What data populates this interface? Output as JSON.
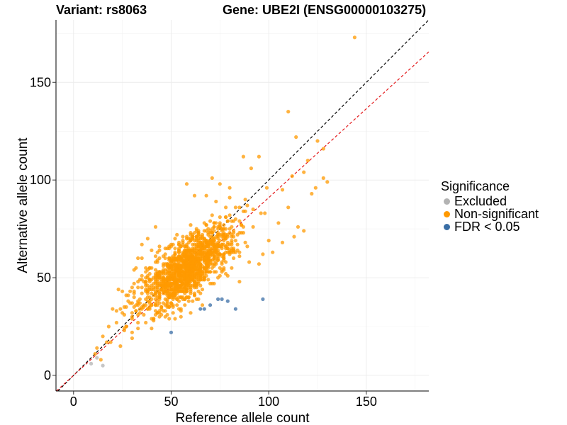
{
  "header": {
    "variant": "Variant: rs8063",
    "gene": "Gene: UBE2I (ENSG00000103275)"
  },
  "legend": {
    "title": "Significance",
    "items": [
      {
        "label": "Excluded",
        "color": "#b3b3b3"
      },
      {
        "label": "Non-significant",
        "color": "#ff9900"
      },
      {
        "label": "FDR < 0.05",
        "color": "#3a6ea5"
      }
    ]
  },
  "chart_data": {
    "type": "scatter",
    "title": "Variant: rs8063    Gene: UBE2I (ENSG00000103275)",
    "xlabel": "Reference allele count",
    "ylabel": "Alternative allele count",
    "xlim": [
      -9,
      182
    ],
    "ylim": [
      -8,
      182
    ],
    "xticks": [
      0,
      50,
      100,
      150
    ],
    "yticks": [
      0,
      50,
      100,
      150
    ],
    "grid": true,
    "reference_lines": [
      {
        "name": "identity",
        "slope": 1.0,
        "intercept": 0,
        "color": "#000000",
        "style": "dashed"
      },
      {
        "name": "fitted",
        "slope": 0.91,
        "intercept": 0,
        "color": "#e41a1c",
        "style": "dashed"
      }
    ],
    "series": [
      {
        "name": "Excluded",
        "color": "#b3b3b3",
        "points": [
          [
            9,
            6
          ],
          [
            15,
            5
          ],
          [
            12,
            9
          ]
        ]
      },
      {
        "name": "FDR < 0.05",
        "color": "#3a6ea5",
        "points": [
          [
            50,
            22
          ],
          [
            65,
            34
          ],
          [
            67,
            34
          ],
          [
            70,
            36
          ],
          [
            74,
            39
          ],
          [
            76,
            39
          ],
          [
            79,
            38
          ],
          [
            83,
            34
          ],
          [
            97,
            39
          ]
        ]
      },
      {
        "name": "Non-significant",
        "color": "#ff9900",
        "n_points": 1500,
        "bulk_center": [
          58,
          55
        ],
        "sd_along_diagonal": 15,
        "sd_across_diagonal": 6,
        "points": [
          [
            144,
            173
          ],
          [
            110,
            135
          ],
          [
            114,
            122
          ],
          [
            125,
            120
          ],
          [
            128,
            116
          ],
          [
            120,
            110
          ],
          [
            118,
            104
          ],
          [
            112,
            102
          ],
          [
            128,
            101
          ],
          [
            130,
            99
          ],
          [
            124,
            96
          ],
          [
            122,
            93
          ],
          [
            95,
            112
          ],
          [
            87,
            112
          ],
          [
            91,
            106
          ],
          [
            99,
            96
          ],
          [
            107,
            95
          ],
          [
            110,
            86
          ],
          [
            115,
            76
          ],
          [
            118,
            74
          ],
          [
            113,
            71
          ],
          [
            107,
            68
          ],
          [
            100,
            69
          ],
          [
            105,
            78
          ],
          [
            98,
            83
          ],
          [
            88,
            90
          ],
          [
            92,
            85
          ],
          [
            80,
            96
          ],
          [
            75,
            98
          ],
          [
            71,
            101
          ],
          [
            68,
            92
          ],
          [
            58,
            98
          ],
          [
            62,
            92
          ],
          [
            42,
            76
          ],
          [
            38,
            70
          ],
          [
            35,
            60
          ],
          [
            30,
            45
          ],
          [
            28,
            41
          ],
          [
            25,
            43
          ],
          [
            22,
            33
          ],
          [
            18,
            25
          ],
          [
            15,
            20
          ],
          [
            12,
            14
          ],
          [
            11,
            11
          ],
          [
            14,
            8
          ],
          [
            19,
            17
          ],
          [
            22,
            27
          ],
          [
            26,
            24
          ],
          [
            33,
            27
          ],
          [
            40,
            24
          ],
          [
            44,
            30
          ],
          [
            55,
            30
          ],
          [
            60,
            32
          ],
          [
            78,
            52
          ],
          [
            85,
            48
          ],
          [
            95,
            57
          ],
          [
            102,
            63
          ],
          [
            97,
            62
          ],
          [
            90,
            58
          ]
        ]
      }
    ]
  }
}
